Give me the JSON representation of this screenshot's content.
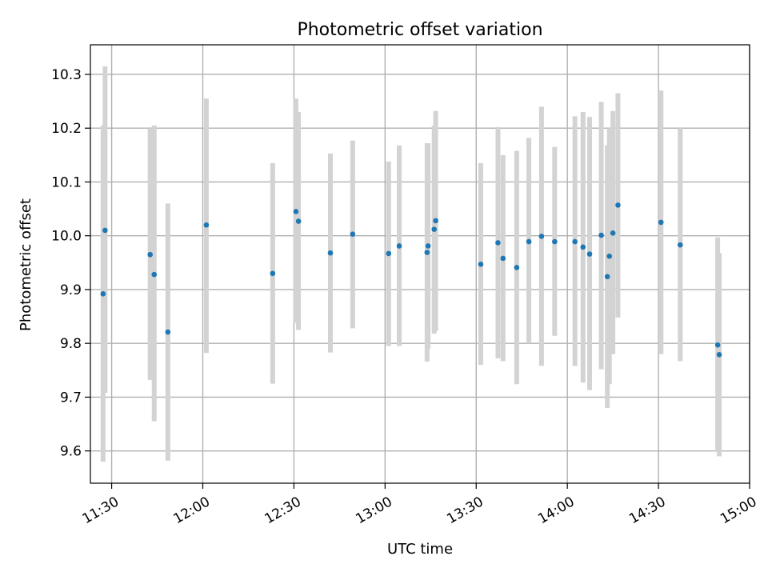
{
  "chart_data": {
    "type": "scatter",
    "title": "Photometric offset variation",
    "xlabel": "UTC time",
    "ylabel": "Photometric offset",
    "x_axis_type": "time",
    "xlim": [
      "11:23",
      "15:00"
    ],
    "ylim": [
      9.54,
      10.355
    ],
    "xticks": [
      "11:30",
      "12:00",
      "12:30",
      "13:00",
      "13:30",
      "14:00",
      "14:30",
      "15:00"
    ],
    "yticks": [
      "9.6",
      "9.7",
      "9.8",
      "9.9",
      "10.0",
      "10.1",
      "10.2",
      "10.3"
    ],
    "grid": true,
    "marker_color": "#1f77b4",
    "errorbar_color": "#d3d3d3",
    "series": [
      {
        "points": [
          {
            "x": "11:27:10",
            "y": 9.892,
            "ylow": 9.58,
            "yhigh": 10.205
          },
          {
            "x": "11:27:50",
            "y": 10.01,
            "ylow": 9.708,
            "yhigh": 10.315
          },
          {
            "x": "11:42:40",
            "y": 9.965,
            "ylow": 9.732,
            "yhigh": 10.2
          },
          {
            "x": "11:44:00",
            "y": 9.928,
            "ylow": 9.655,
            "yhigh": 10.205
          },
          {
            "x": "11:48:30",
            "y": 9.821,
            "ylow": 9.582,
            "yhigh": 10.06
          },
          {
            "x": "12:01:10",
            "y": 10.02,
            "ylow": 9.782,
            "yhigh": 10.255
          },
          {
            "x": "12:23:00",
            "y": 9.93,
            "ylow": 9.725,
            "yhigh": 10.135
          },
          {
            "x": "12:30:40",
            "y": 10.045,
            "ylow": 9.838,
            "yhigh": 10.255
          },
          {
            "x": "12:31:30",
            "y": 10.027,
            "ylow": 9.825,
            "yhigh": 10.23
          },
          {
            "x": "12:42:00",
            "y": 9.968,
            "ylow": 9.783,
            "yhigh": 10.153
          },
          {
            "x": "12:49:20",
            "y": 10.003,
            "ylow": 9.828,
            "yhigh": 10.177
          },
          {
            "x": "13:01:10",
            "y": 9.967,
            "ylow": 9.795,
            "yhigh": 10.138
          },
          {
            "x": "13:04:40",
            "y": 9.981,
            "ylow": 9.795,
            "yhigh": 10.168
          },
          {
            "x": "13:13:50",
            "y": 9.969,
            "ylow": 9.766,
            "yhigh": 10.172
          },
          {
            "x": "13:14:10",
            "y": 9.981,
            "ylow": 9.79,
            "yhigh": 10.172
          },
          {
            "x": "13:16:10",
            "y": 10.012,
            "ylow": 9.818,
            "yhigh": 10.205
          },
          {
            "x": "13:16:40",
            "y": 10.028,
            "ylow": 9.823,
            "yhigh": 10.232
          },
          {
            "x": "13:31:30",
            "y": 9.947,
            "ylow": 9.76,
            "yhigh": 10.135
          },
          {
            "x": "13:37:10",
            "y": 9.987,
            "ylow": 9.772,
            "yhigh": 10.202
          },
          {
            "x": "13:38:50",
            "y": 9.958,
            "ylow": 9.767,
            "yhigh": 10.15
          },
          {
            "x": "13:43:20",
            "y": 9.941,
            "ylow": 9.724,
            "yhigh": 10.158
          },
          {
            "x": "13:47:20",
            "y": 9.989,
            "ylow": 9.8,
            "yhigh": 10.182
          },
          {
            "x": "13:51:30",
            "y": 9.999,
            "ylow": 9.758,
            "yhigh": 10.24
          },
          {
            "x": "13:55:50",
            "y": 9.989,
            "ylow": 9.814,
            "yhigh": 10.165
          },
          {
            "x": "14:02:30",
            "y": 9.989,
            "ylow": 9.758,
            "yhigh": 10.222
          },
          {
            "x": "14:05:10",
            "y": 9.979,
            "ylow": 9.727,
            "yhigh": 10.23
          },
          {
            "x": "14:07:20",
            "y": 9.966,
            "ylow": 9.713,
            "yhigh": 10.221
          },
          {
            "x": "14:11:10",
            "y": 10.001,
            "ylow": 9.752,
            "yhigh": 10.249
          },
          {
            "x": "14:13:10",
            "y": 9.924,
            "ylow": 9.68,
            "yhigh": 10.168
          },
          {
            "x": "14:13:50",
            "y": 9.962,
            "ylow": 9.724,
            "yhigh": 10.2
          },
          {
            "x": "14:15:00",
            "y": 10.005,
            "ylow": 9.78,
            "yhigh": 10.232
          },
          {
            "x": "14:16:40",
            "y": 10.057,
            "ylow": 9.848,
            "yhigh": 10.265
          },
          {
            "x": "14:30:50",
            "y": 10.025,
            "ylow": 9.78,
            "yhigh": 10.27
          },
          {
            "x": "14:37:10",
            "y": 9.983,
            "ylow": 9.767,
            "yhigh": 10.2
          },
          {
            "x": "14:49:30",
            "y": 9.797,
            "ylow": 9.598,
            "yhigh": 9.997
          },
          {
            "x": "14:50:00",
            "y": 9.779,
            "ylow": 9.59,
            "yhigh": 9.968
          }
        ]
      }
    ]
  }
}
